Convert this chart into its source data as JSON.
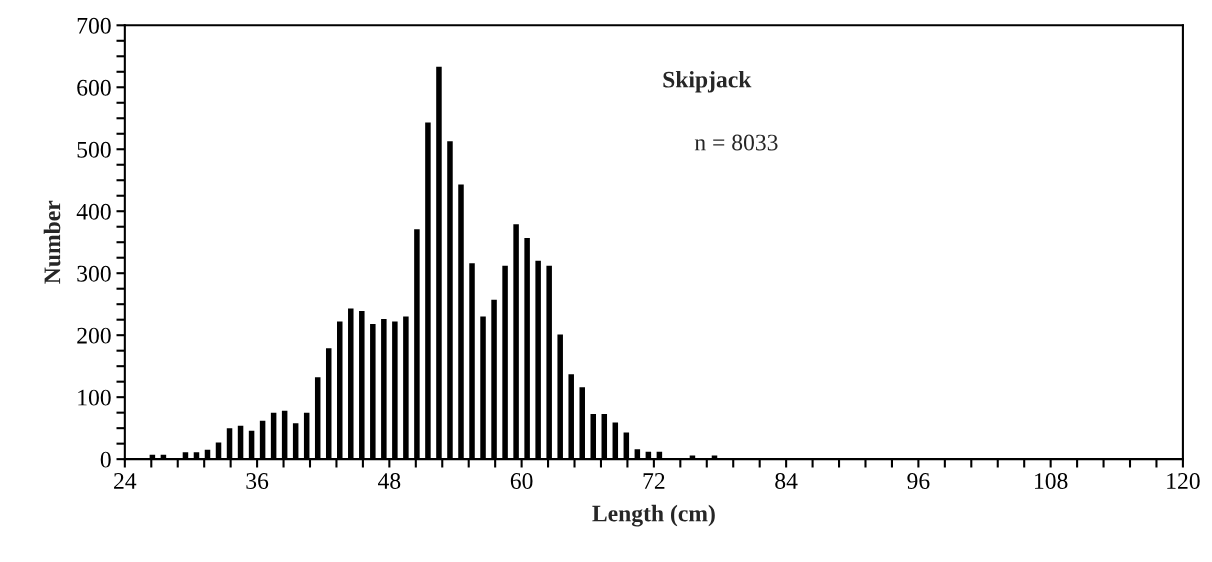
{
  "chart_data": {
    "type": "histogram",
    "xlabel": "Length (cm)",
    "ylabel": "Number",
    "annotations": [
      "Skipjack",
      "n = 8033"
    ],
    "bins": [
      26,
      27,
      28,
      29,
      30,
      31,
      32,
      33,
      34,
      35,
      36,
      37,
      38,
      39,
      40,
      41,
      42,
      43,
      44,
      45,
      46,
      47,
      48,
      49,
      50,
      51,
      52,
      53,
      54,
      55,
      56,
      57,
      58,
      59,
      60,
      61,
      62,
      63,
      64,
      65,
      66,
      67,
      68,
      69,
      70,
      71,
      72,
      73,
      74,
      75,
      76,
      77,
      78
    ],
    "values": [
      7,
      7,
      0,
      11,
      11,
      15,
      27,
      50,
      54,
      46,
      62,
      75,
      78,
      58,
      75,
      132,
      179,
      222,
      243,
      239,
      218,
      226,
      222,
      230,
      371,
      543,
      633,
      513,
      443,
      316,
      230,
      257,
      312,
      379,
      357,
      320,
      312,
      201,
      137,
      116,
      73,
      73,
      59,
      43,
      16,
      12,
      12,
      0,
      0,
      6,
      0,
      6
    ],
    "color": "#000000",
    "xlim": [
      24,
      120
    ],
    "xticks": [
      24,
      {
        "value": 26.4,
        "label": null
      },
      {
        "value": 28.8,
        "label": null
      },
      {
        "value": 31.2,
        "label": null
      },
      {
        "value": 33.6,
        "label": null
      },
      36,
      {
        "value": 38.4,
        "label": null
      },
      {
        "value": 40.8,
        "label": null
      },
      {
        "value": 43.2,
        "label": null
      },
      {
        "value": 45.6,
        "label": null
      },
      48,
      {
        "value": 50.4,
        "label": null
      },
      {
        "value": 52.8,
        "label": null
      },
      {
        "value": 55.2,
        "label": null
      },
      {
        "value": 57.6,
        "label": null
      },
      60,
      {
        "value": 62.4,
        "label": null
      },
      {
        "value": 64.8,
        "label": null
      },
      {
        "value": 67.2,
        "label": null
      },
      {
        "value": 69.6,
        "label": null
      },
      72,
      {
        "value": 74.4,
        "label": null
      },
      {
        "value": 76.8,
        "label": null
      },
      {
        "value": 79.2,
        "label": null
      },
      {
        "value": 81.6,
        "label": null
      },
      84,
      {
        "value": 86.4,
        "label": null
      },
      {
        "value": 88.8,
        "label": null
      },
      {
        "value": 91.2,
        "label": null
      },
      {
        "value": 93.6,
        "label": null
      },
      96,
      {
        "value": 98.4,
        "label": null
      },
      {
        "value": 100.8,
        "label": null
      },
      {
        "value": 103.2,
        "label": null
      },
      {
        "value": 105.6,
        "label": null
      },
      108,
      {
        "value": 110.4,
        "label": null
      },
      {
        "value": 112.8,
        "label": null
      },
      {
        "value": 115.2,
        "label": null
      },
      {
        "value": 117.6,
        "label": null
      },
      120
    ],
    "ylim": [
      0,
      700
    ],
    "yticks": [
      0,
      {
        "value": 25,
        "label": null
      },
      {
        "value": 50,
        "label": null
      },
      {
        "value": 75,
        "label": null
      },
      100,
      {
        "value": 125,
        "label": null
      },
      {
        "value": 150,
        "label": null
      },
      {
        "value": 175,
        "label": null
      },
      200,
      {
        "value": 225,
        "label": null
      },
      {
        "value": 250,
        "label": null
      },
      {
        "value": 275,
        "label": null
      },
      300,
      {
        "value": 325,
        "label": null
      },
      {
        "value": 350,
        "label": null
      },
      {
        "value": 375,
        "label": null
      },
      400,
      {
        "value": 425,
        "label": null
      },
      {
        "value": 450,
        "label": null
      },
      {
        "value": 475,
        "label": null
      },
      500,
      {
        "value": 525,
        "label": null
      },
      {
        "value": 550,
        "label": null
      },
      {
        "value": 575,
        "label": null
      },
      600,
      {
        "value": 625,
        "label": null
      },
      {
        "value": 650,
        "label": null
      },
      {
        "value": 675,
        "label": null
      },
      700
    ],
    "grid": false,
    "legend": false
  }
}
